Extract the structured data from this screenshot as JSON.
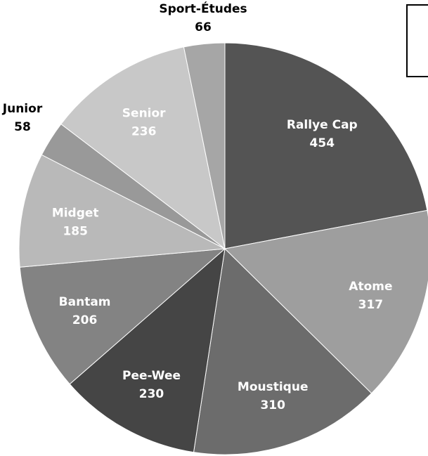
{
  "chart_data": {
    "type": "pie",
    "title": "",
    "slices": [
      {
        "label": "Rallye Cap",
        "value": 454,
        "color": "#545454",
        "label_color": "#ffffff",
        "label_inside": true
      },
      {
        "label": "Atome",
        "value": 317,
        "color": "#9e9e9e",
        "label_color": "#ffffff",
        "label_inside": true
      },
      {
        "label": "Moustique",
        "value": 310,
        "color": "#6c6c6c",
        "label_color": "#ffffff",
        "label_inside": true
      },
      {
        "label": "Pee-Wee",
        "value": 230,
        "color": "#454545",
        "label_color": "#ffffff",
        "label_inside": true
      },
      {
        "label": "Bantam",
        "value": 206,
        "color": "#838383",
        "label_color": "#ffffff",
        "label_inside": true
      },
      {
        "label": "Midget",
        "value": 185,
        "color": "#b9b9b9",
        "label_color": "#ffffff",
        "label_inside": true
      },
      {
        "label": "Junior",
        "value": 58,
        "color": "#999999",
        "label_color": "#000000",
        "label_inside": false
      },
      {
        "label": "Senior",
        "value": 236,
        "color": "#c8c8c8",
        "label_color": "#ffffff",
        "label_inside": true
      },
      {
        "label": "Sport-Études",
        "value": 66,
        "color": "#a6a6a6",
        "label_color": "#000000",
        "label_inside": false
      }
    ],
    "legend": {
      "placement": "top-right",
      "entries": []
    }
  }
}
